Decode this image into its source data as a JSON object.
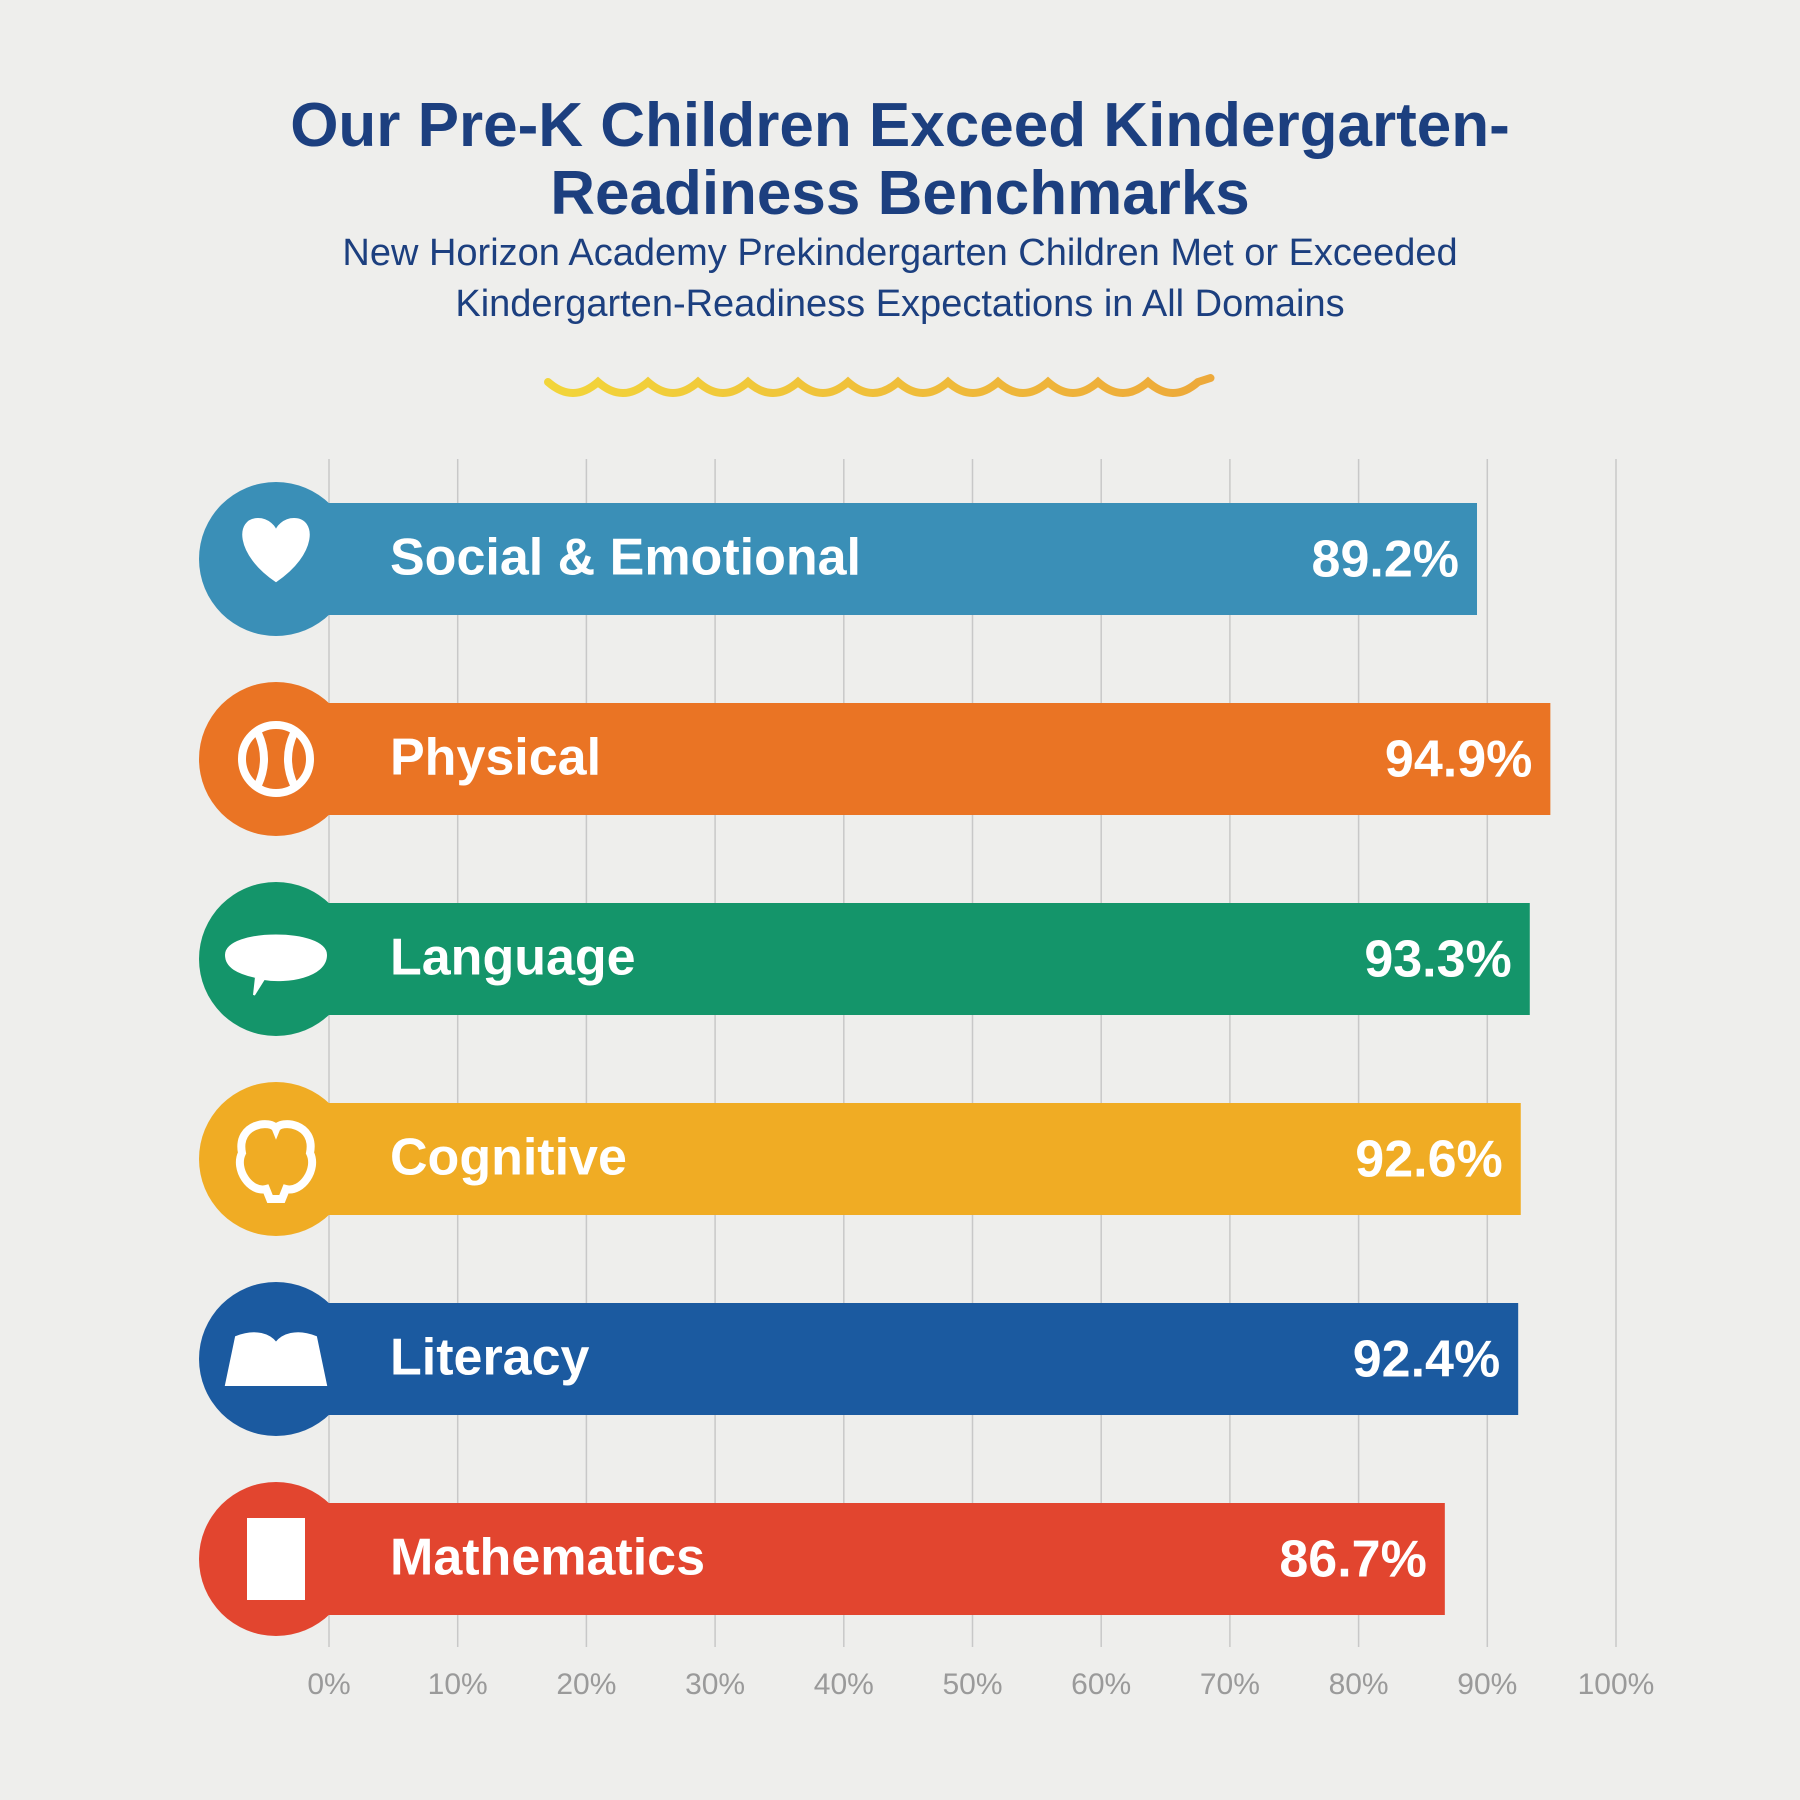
{
  "chart_data": {
    "type": "bar",
    "title": "Our Pre-K Children Exceed Kindergarten-Readiness Benchmarks",
    "subtitle": "New Horizon Academy Prekindergarten Children Met or Exceeded Kindergarten-Readiness Expectations in All Domains",
    "categories": [
      "Social & Emotional",
      "Physical",
      "Language",
      "Cognitive",
      "Literacy",
      "Mathematics"
    ],
    "values": [
      89.2,
      94.9,
      93.3,
      92.6,
      92.4,
      86.7
    ],
    "value_labels": [
      "89.2%",
      "94.9%",
      "93.3%",
      "92.6%",
      "92.4%",
      "86.7%"
    ],
    "colors": [
      "#3a8fb7",
      "#ea7424",
      "#14956a",
      "#f0ac24",
      "#1b5aa0",
      "#e2452f"
    ],
    "xlim": [
      0,
      100
    ],
    "xticks": [
      {
        "value": 0,
        "label": "0%"
      },
      {
        "value": 10,
        "label": "10%"
      },
      {
        "value": 20,
        "label": "20%"
      },
      {
        "value": 30,
        "label": "30%"
      },
      {
        "value": 40,
        "label": "40%"
      },
      {
        "value": 50,
        "label": "50%"
      },
      {
        "value": 60,
        "label": "60%"
      },
      {
        "value": 70,
        "label": "70%"
      },
      {
        "value": 80,
        "label": "80%"
      },
      {
        "value": 90,
        "label": "90%"
      },
      {
        "value": 100,
        "label": "100%"
      }
    ],
    "grid": true
  }
}
